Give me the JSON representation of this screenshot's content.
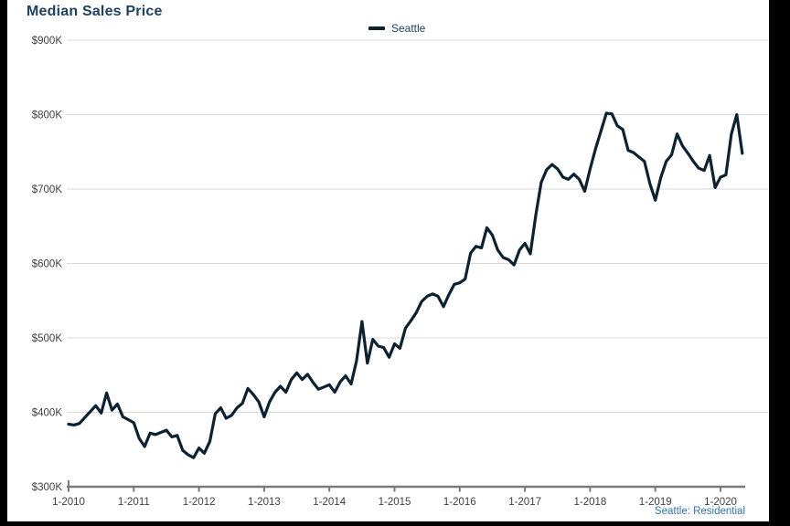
{
  "title": "Median Sales Price",
  "legend": {
    "label": "Seattle"
  },
  "footer_link": {
    "label": "Seattle: Residential"
  },
  "colors": {
    "page_background": "#000000",
    "canvas_background": "#ffffff",
    "title_text": "#1d4263",
    "legend_text": "#1d4263",
    "line": "#0d2231",
    "gridline": "#d8d8d8",
    "axis_line": "#7a7a7a",
    "tick_label": "#3f3f3f",
    "link_text": "#2e74b5"
  },
  "chart_data": {
    "type": "line",
    "title": "Median Sales Price",
    "xlabel": "",
    "ylabel": "",
    "grid": "horizontal gridlines at each $100K",
    "legend_position": "top-center",
    "ylim_k_usd": [
      300,
      900
    ],
    "y_tick_labels": [
      "$300K",
      "$400K",
      "$500K",
      "$600K",
      "$700K",
      "$800K",
      "$900K"
    ],
    "x_tick_labels": [
      "1-2010",
      "1-2011",
      "1-2012",
      "1-2013",
      "1-2014",
      "1-2015",
      "1-2016",
      "1-2017",
      "1-2018",
      "1-2019",
      "1-2020"
    ],
    "series": [
      {
        "name": "Seattle",
        "frequency": "monthly",
        "start": "2010-01",
        "end": "2020-05",
        "unit": "thousand USD",
        "values": [
          384,
          383,
          385,
          393,
          401,
          409,
          399,
          426,
          403,
          411,
          394,
          390,
          386,
          365,
          354,
          372,
          370,
          373,
          376,
          367,
          369,
          349,
          343,
          339,
          352,
          345,
          361,
          398,
          406,
          392,
          396,
          406,
          412,
          432,
          424,
          414,
          394,
          414,
          427,
          435,
          427,
          444,
          453,
          444,
          451,
          440,
          431,
          434,
          437,
          427,
          441,
          449,
          438,
          469,
          522,
          466,
          498,
          489,
          487,
          474,
          492,
          486,
          513,
          523,
          534,
          549,
          556,
          559,
          556,
          542,
          558,
          572,
          574,
          579,
          614,
          623,
          621,
          648,
          638,
          618,
          608,
          605,
          598,
          618,
          627,
          613,
          665,
          709,
          726,
          733,
          727,
          716,
          713,
          720,
          713,
          697,
          727,
          754,
          778,
          802,
          801,
          785,
          780,
          752,
          749,
          743,
          737,
          707,
          685,
          715,
          737,
          746,
          774,
          758,
          748,
          737,
          728,
          725,
          745,
          702,
          716,
          719,
          774,
          800,
          748
        ]
      }
    ]
  }
}
